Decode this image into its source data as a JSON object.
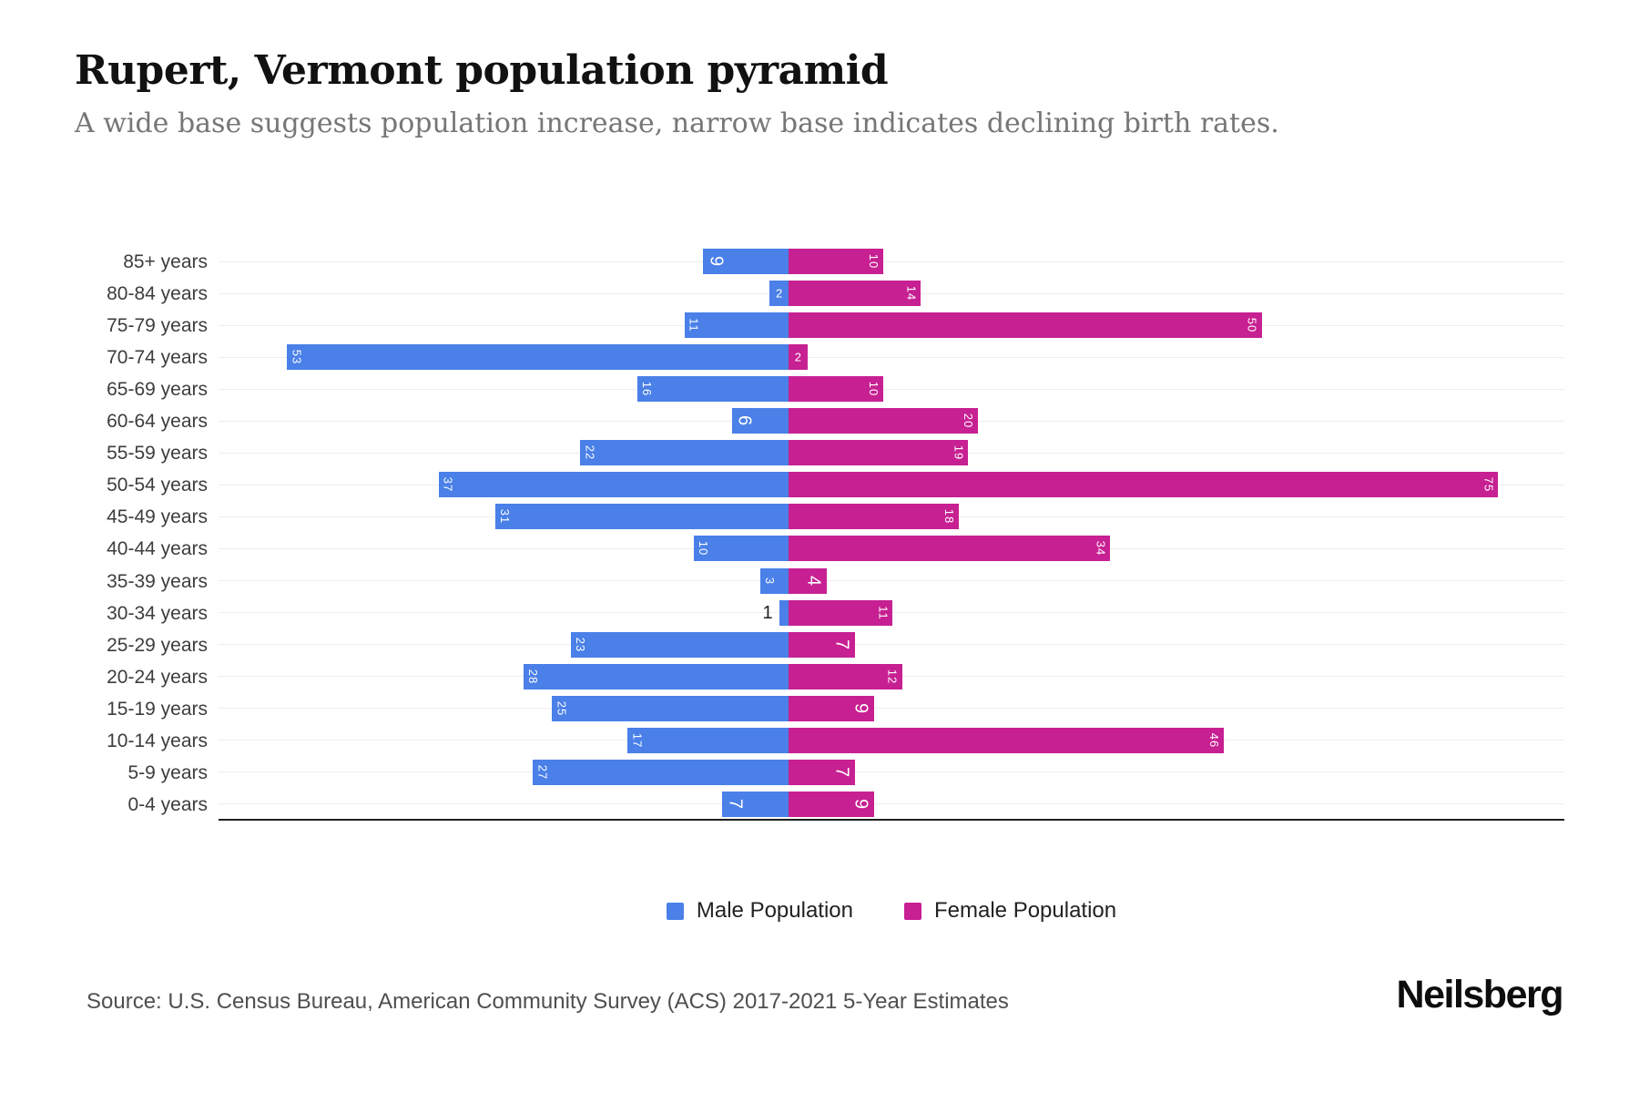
{
  "header": {
    "title": "Rupert, Vermont population pyramid",
    "subtitle": "A wide base suggests population increase, narrow base indicates declining birth rates."
  },
  "chart_data": {
    "type": "bar",
    "variant": "population-pyramid-diverging-horizontal",
    "title": "Rupert, Vermont population pyramid",
    "categories": [
      "85+ years",
      "80-84 years",
      "75-79 years",
      "70-74 years",
      "65-69 years",
      "60-64 years",
      "55-59 years",
      "50-54 years",
      "45-49 years",
      "40-44 years",
      "35-39 years",
      "30-34 years",
      "25-29 years",
      "20-24 years",
      "15-19 years",
      "10-14 years",
      "5-9 years",
      "0-4 years"
    ],
    "series": [
      {
        "name": "Male Population",
        "color": "#4A80E8",
        "direction": "left",
        "values": [
          9,
          2,
          11,
          53,
          16,
          6,
          22,
          37,
          31,
          10,
          3,
          1,
          23,
          28,
          25,
          17,
          27,
          7
        ]
      },
      {
        "name": "Female Population",
        "color": "#C72092",
        "direction": "right",
        "values": [
          10,
          14,
          50,
          2,
          10,
          20,
          19,
          75,
          18,
          34,
          4,
          11,
          7,
          12,
          9,
          46,
          7,
          9
        ]
      }
    ],
    "xlabel": "",
    "ylabel": "",
    "axis": {
      "grid": true,
      "gridline_at": "row-center",
      "x_range_male": [
        0,
        60
      ],
      "x_range_female": [
        0,
        82
      ],
      "x_tick_labels": false
    },
    "legend_position": "bottom",
    "value_labels": "inside-bar-end-rotated-white; value 1 shown black outside bar"
  },
  "legend": {
    "items": [
      {
        "label": "Male Population",
        "color": "#4A80E8"
      },
      {
        "label": "Female Population",
        "color": "#C72092"
      }
    ]
  },
  "footer": {
    "source": "Source: U.S. Census Bureau, American Community Survey (ACS) 2017-2021 5-Year Estimates",
    "brand": "Neilsberg"
  }
}
